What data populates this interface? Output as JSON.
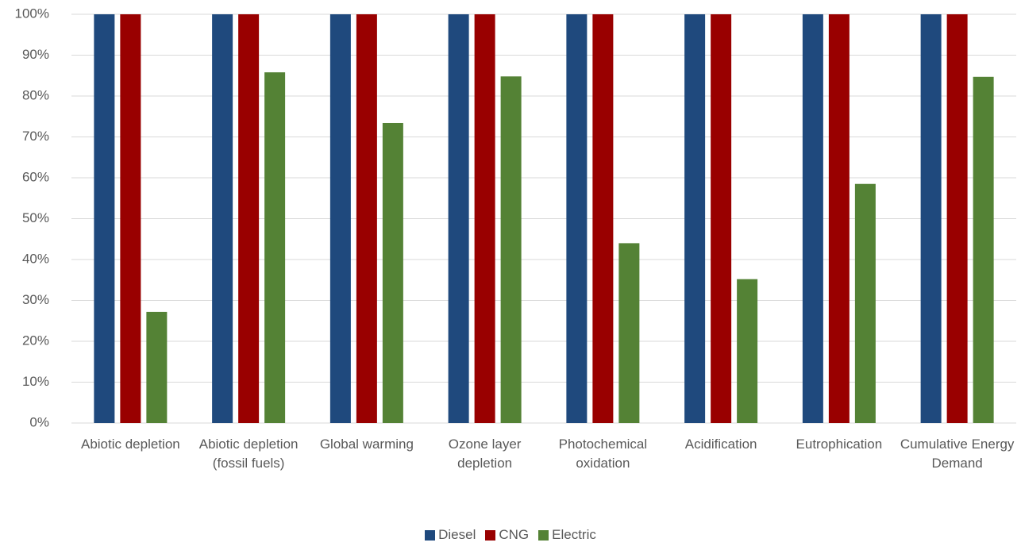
{
  "chart_data": {
    "type": "bar",
    "categories": [
      "Abiotic depletion",
      "Abiotic depletion (fossil fuels)",
      "Global warming",
      "Ozone layer depletion",
      "Photochemical oxidation",
      "Acidification",
      "Eutrophication",
      "Cumulative Energy Demand"
    ],
    "series": [
      {
        "name": "Diesel",
        "color": "#1f497d",
        "values": [
          100,
          100,
          100,
          100,
          100,
          100,
          100,
          100
        ]
      },
      {
        "name": "CNG",
        "color": "#990000",
        "values": [
          100,
          100,
          100,
          100,
          100,
          100,
          100,
          100
        ]
      },
      {
        "name": "Electric",
        "color": "#548235",
        "values": [
          27.2,
          85.8,
          73.4,
          84.8,
          44.0,
          35.2,
          58.5,
          84.7
        ]
      }
    ],
    "ylim": [
      0,
      100
    ],
    "yticks": [
      {
        "value": 0,
        "label": "0%"
      },
      {
        "value": 10,
        "label": "10%"
      },
      {
        "value": 20,
        "label": "20%"
      },
      {
        "value": 30,
        "label": "30%"
      },
      {
        "value": 40,
        "label": "40%"
      },
      {
        "value": 50,
        "label": "50%"
      },
      {
        "value": 60,
        "label": "60%"
      },
      {
        "value": 70,
        "label": "70%"
      },
      {
        "value": 80,
        "label": "80%"
      },
      {
        "value": 90,
        "label": "90%"
      },
      {
        "value": 100,
        "label": "100%"
      }
    ],
    "grid": true,
    "legend": "bottom"
  }
}
